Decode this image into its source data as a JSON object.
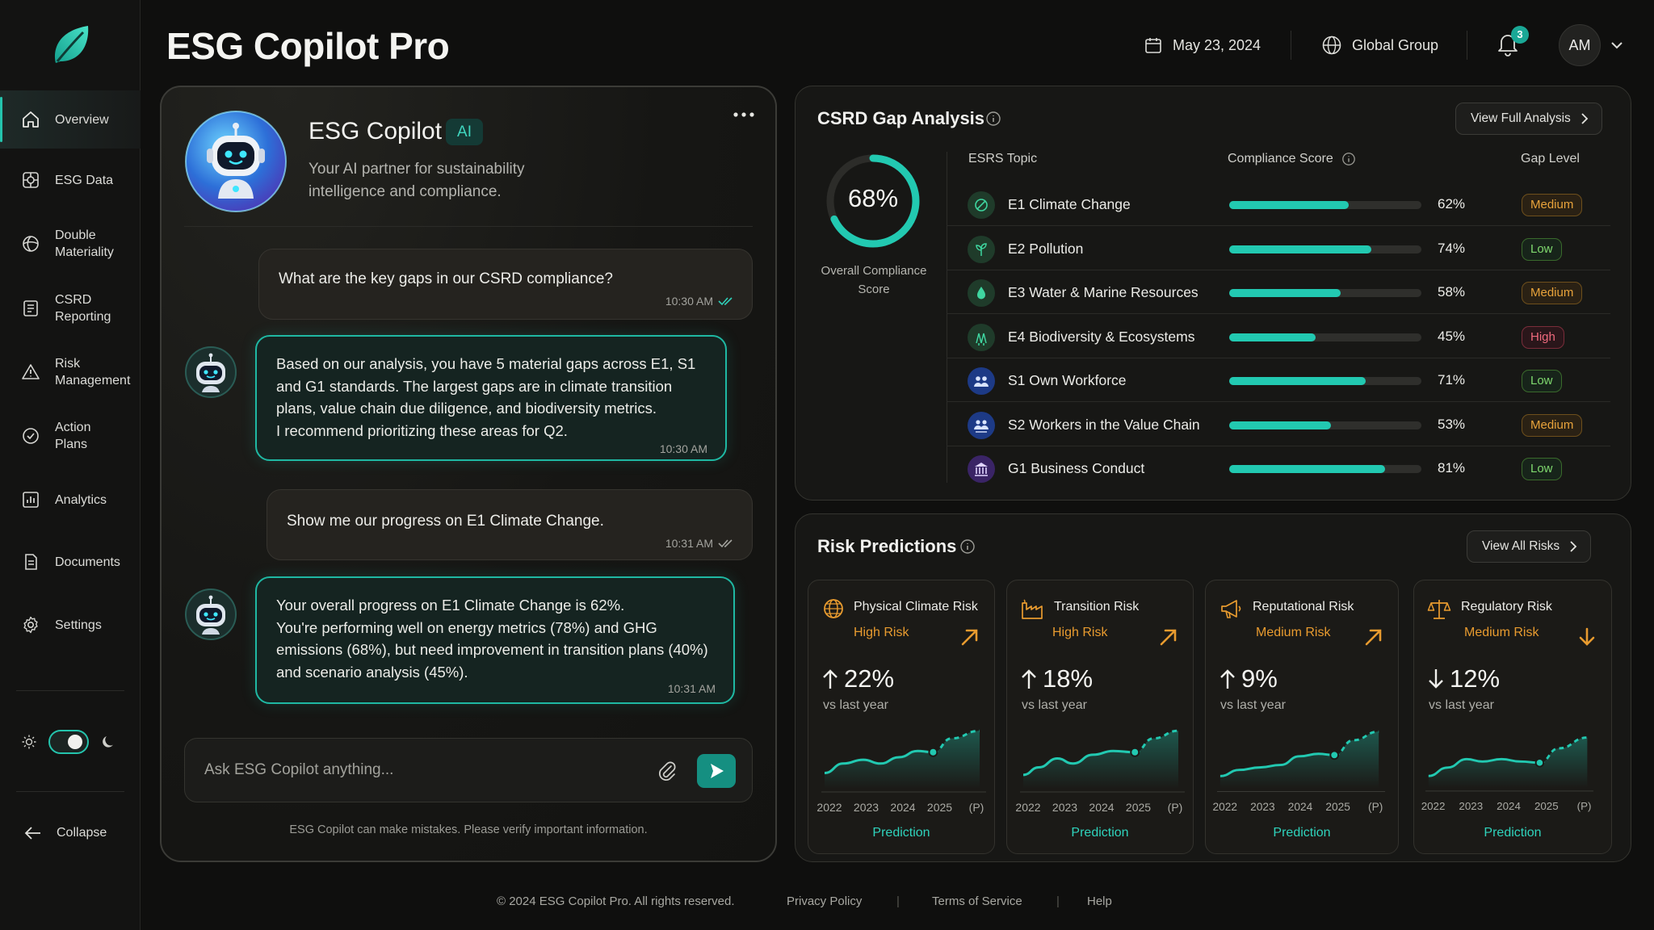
{
  "app": {
    "title": "ESG Copilot Pro"
  },
  "header": {
    "date": "May 23, 2024",
    "org": "Global Group",
    "notification_count": "3",
    "user_initials": "AM"
  },
  "sidebar": {
    "items": [
      {
        "label": "Overview",
        "icon": "home-icon",
        "active": true
      },
      {
        "label": "ESG Data",
        "icon": "esg-data-icon"
      },
      {
        "label": "Double\nMateriality",
        "icon": "materiality-icon"
      },
      {
        "label": "CSRD\nReporting",
        "icon": "report-icon"
      },
      {
        "label": "Risk\nManagement",
        "icon": "warning-icon"
      },
      {
        "label": "Action\nPlans",
        "icon": "target-icon"
      },
      {
        "label": "Analytics",
        "icon": "analytics-icon"
      },
      {
        "label": "Documents",
        "icon": "document-icon"
      },
      {
        "label": "Settings",
        "icon": "gear-icon"
      }
    ],
    "theme": "dark",
    "collapse_label": "Collapse"
  },
  "chat": {
    "title": "ESG Copilot",
    "badge": "AI",
    "subtitle": "Your AI partner for sustainability intelligence and compliance.",
    "messages": [
      {
        "role": "user",
        "text": "What are the key gaps in our CSRD compliance?",
        "time": "10:30 AM"
      },
      {
        "role": "bot",
        "text": "Based on our analysis, you have 5 material gaps across E1, S1 and G1 standards. The largest gaps are in climate transition plans, value chain due diligence, and biodiversity metrics.\nI recommend prioritizing these areas for Q2.",
        "time": "10:30 AM"
      },
      {
        "role": "user",
        "text": "Show me our progress on E1 Climate Change.",
        "time": "10:31 AM"
      },
      {
        "role": "bot",
        "text": "Your overall progress on E1 Climate Change is 62%.\nYou're performing well on energy metrics (78%) and GHG emissions (68%), but need improvement in transition plans (40%) and scenario analysis (45%).",
        "time": "10:31 AM"
      }
    ],
    "input_placeholder": "Ask ESG Copilot anything...",
    "disclaimer": "ESG Copilot can make mistakes. Please verify important information."
  },
  "csrd": {
    "title": "CSRD Gap Analysis",
    "button": "View Full Analysis",
    "overall_score": "68%",
    "overall_score_value": 0.68,
    "overall_label": "Overall Compliance Score",
    "headers": {
      "topic": "ESRS Topic",
      "score": "Compliance Score",
      "gap": "Gap Level"
    },
    "rows": [
      {
        "topic": "E1 Climate Change",
        "score": 62,
        "score_label": "62%",
        "gap": "Medium",
        "icon": "climate-leaf-icon",
        "color": "#1f3b2a"
      },
      {
        "topic": "E2 Pollution",
        "score": 74,
        "score_label": "74%",
        "gap": "Low",
        "icon": "pollution-plant-icon",
        "color": "#1f3b2a"
      },
      {
        "topic": "E3 Water & Marine Resources",
        "score": 58,
        "score_label": "58%",
        "gap": "Medium",
        "icon": "water-drop-icon",
        "color": "#1f3b2a"
      },
      {
        "topic": "E4 Biodiversity & Ecosystems",
        "score": 45,
        "score_label": "45%",
        "gap": "High",
        "icon": "biodiversity-trees-icon",
        "color": "#1f3b2a"
      },
      {
        "topic": "S1 Own Workforce",
        "score": 71,
        "score_label": "71%",
        "gap": "Low",
        "icon": "workforce-people-icon",
        "color": "#1d3a86"
      },
      {
        "topic": "S2 Workers in the Value Chain",
        "score": 53,
        "score_label": "53%",
        "gap": "Medium",
        "icon": "value-chain-people-icon",
        "color": "#1d3a86"
      },
      {
        "topic": "G1 Business Conduct",
        "score": 81,
        "score_label": "81%",
        "gap": "Low",
        "icon": "institution-icon",
        "color": "#3a2466"
      }
    ]
  },
  "risk": {
    "title": "Risk Predictions",
    "button": "View All Risks",
    "cards": [
      {
        "name": "Physical Climate Risk",
        "level": "High Risk",
        "trend": "up",
        "value": "22%",
        "direction": "up",
        "vs": "vs last year",
        "icon": "globe-icon",
        "years": [
          "2022",
          "2023",
          "2024",
          "2025",
          "(P)"
        ],
        "prediction": "Prediction"
      },
      {
        "name": "Transition Risk",
        "level": "High Risk",
        "trend": "up",
        "value": "18%",
        "direction": "up",
        "vs": "vs last year",
        "icon": "factory-icon",
        "years": [
          "2022",
          "2023",
          "2024",
          "2025",
          "(P)"
        ],
        "prediction": "Prediction"
      },
      {
        "name": "Reputational Risk",
        "level": "Medium Risk",
        "trend": "up",
        "value": "9%",
        "direction": "up",
        "vs": "vs last year",
        "icon": "megaphone-icon",
        "years": [
          "2022",
          "2023",
          "2024",
          "2025",
          "(P)"
        ],
        "prediction": "Prediction"
      },
      {
        "name": "Regulatory Risk",
        "level": "Medium Risk",
        "trend": "down",
        "value": "12%",
        "direction": "down",
        "vs": "vs last year",
        "icon": "scales-icon",
        "years": [
          "2022",
          "2023",
          "2024",
          "2025",
          "(P)"
        ],
        "prediction": "Prediction"
      }
    ]
  },
  "footer": {
    "copyright": "© 2024 ESG Copilot Pro. All rights reserved.",
    "privacy": "Privacy Policy",
    "terms": "Terms of Service",
    "help": "Help"
  },
  "colors": {
    "accent": "#22c9b1",
    "high": "#ef6a7d",
    "medium": "#e8a33b",
    "low": "#7fd96e",
    "risk_orange": "#e89b2f"
  }
}
